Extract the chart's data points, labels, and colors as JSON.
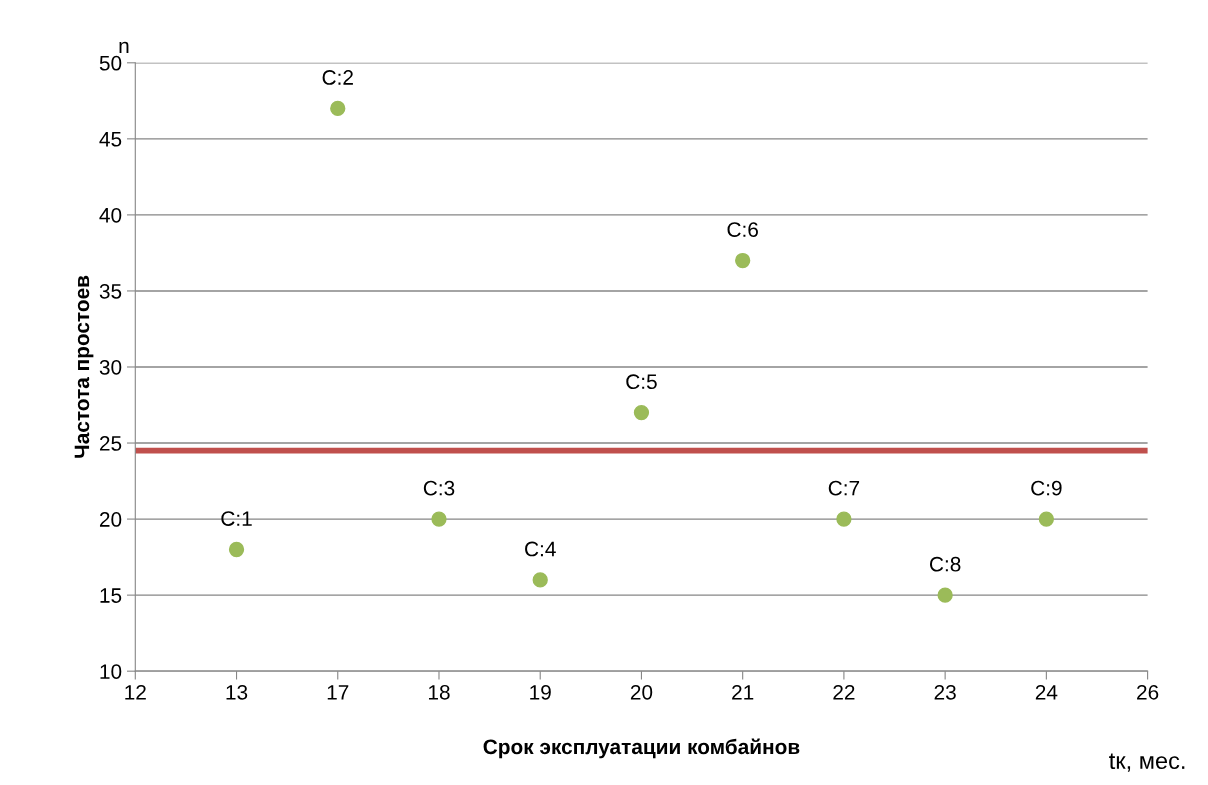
{
  "chart_data": {
    "type": "scatter",
    "xlabel": "Срок эксплуатации комбайнов",
    "ylabel": "Частота простоев",
    "categories": [
      "12",
      "13",
      "17",
      "18",
      "19",
      "20",
      "21",
      "22",
      "23",
      "24",
      "26"
    ],
    "series": [
      {
        "color": "#9bbb59",
        "values": [
          null,
          18,
          47,
          20,
          16,
          27,
          37,
          20,
          15,
          20,
          null
        ]
      }
    ],
    "ylim": [
      10,
      50
    ],
    "yticks": [
      10,
      15,
      20,
      25,
      30,
      35,
      40,
      45,
      50
    ],
    "grid": "y",
    "marker": "circle",
    "ref_lines": [
      {
        "axis": "y",
        "value": 24.5,
        "color": "#c0504d"
      }
    ],
    "annotations": [
      "n",
      "tк, мес.",
      {
        "text": "C:1",
        "x": "13",
        "y": 18
      },
      {
        "text": "C:2",
        "x": "17",
        "y": 47
      },
      {
        "text": "C:3",
        "x": "18",
        "y": 20
      },
      {
        "text": "C:4",
        "x": "19",
        "y": 16
      },
      {
        "text": "C:5",
        "x": "20",
        "y": 27
      },
      {
        "text": "C:6",
        "x": "21",
        "y": 37
      },
      {
        "text": "C:7",
        "x": "22",
        "y": 20
      },
      {
        "text": "C:8",
        "x": "23",
        "y": 15
      },
      {
        "text": "C:9",
        "x": "24",
        "y": 20
      }
    ]
  }
}
